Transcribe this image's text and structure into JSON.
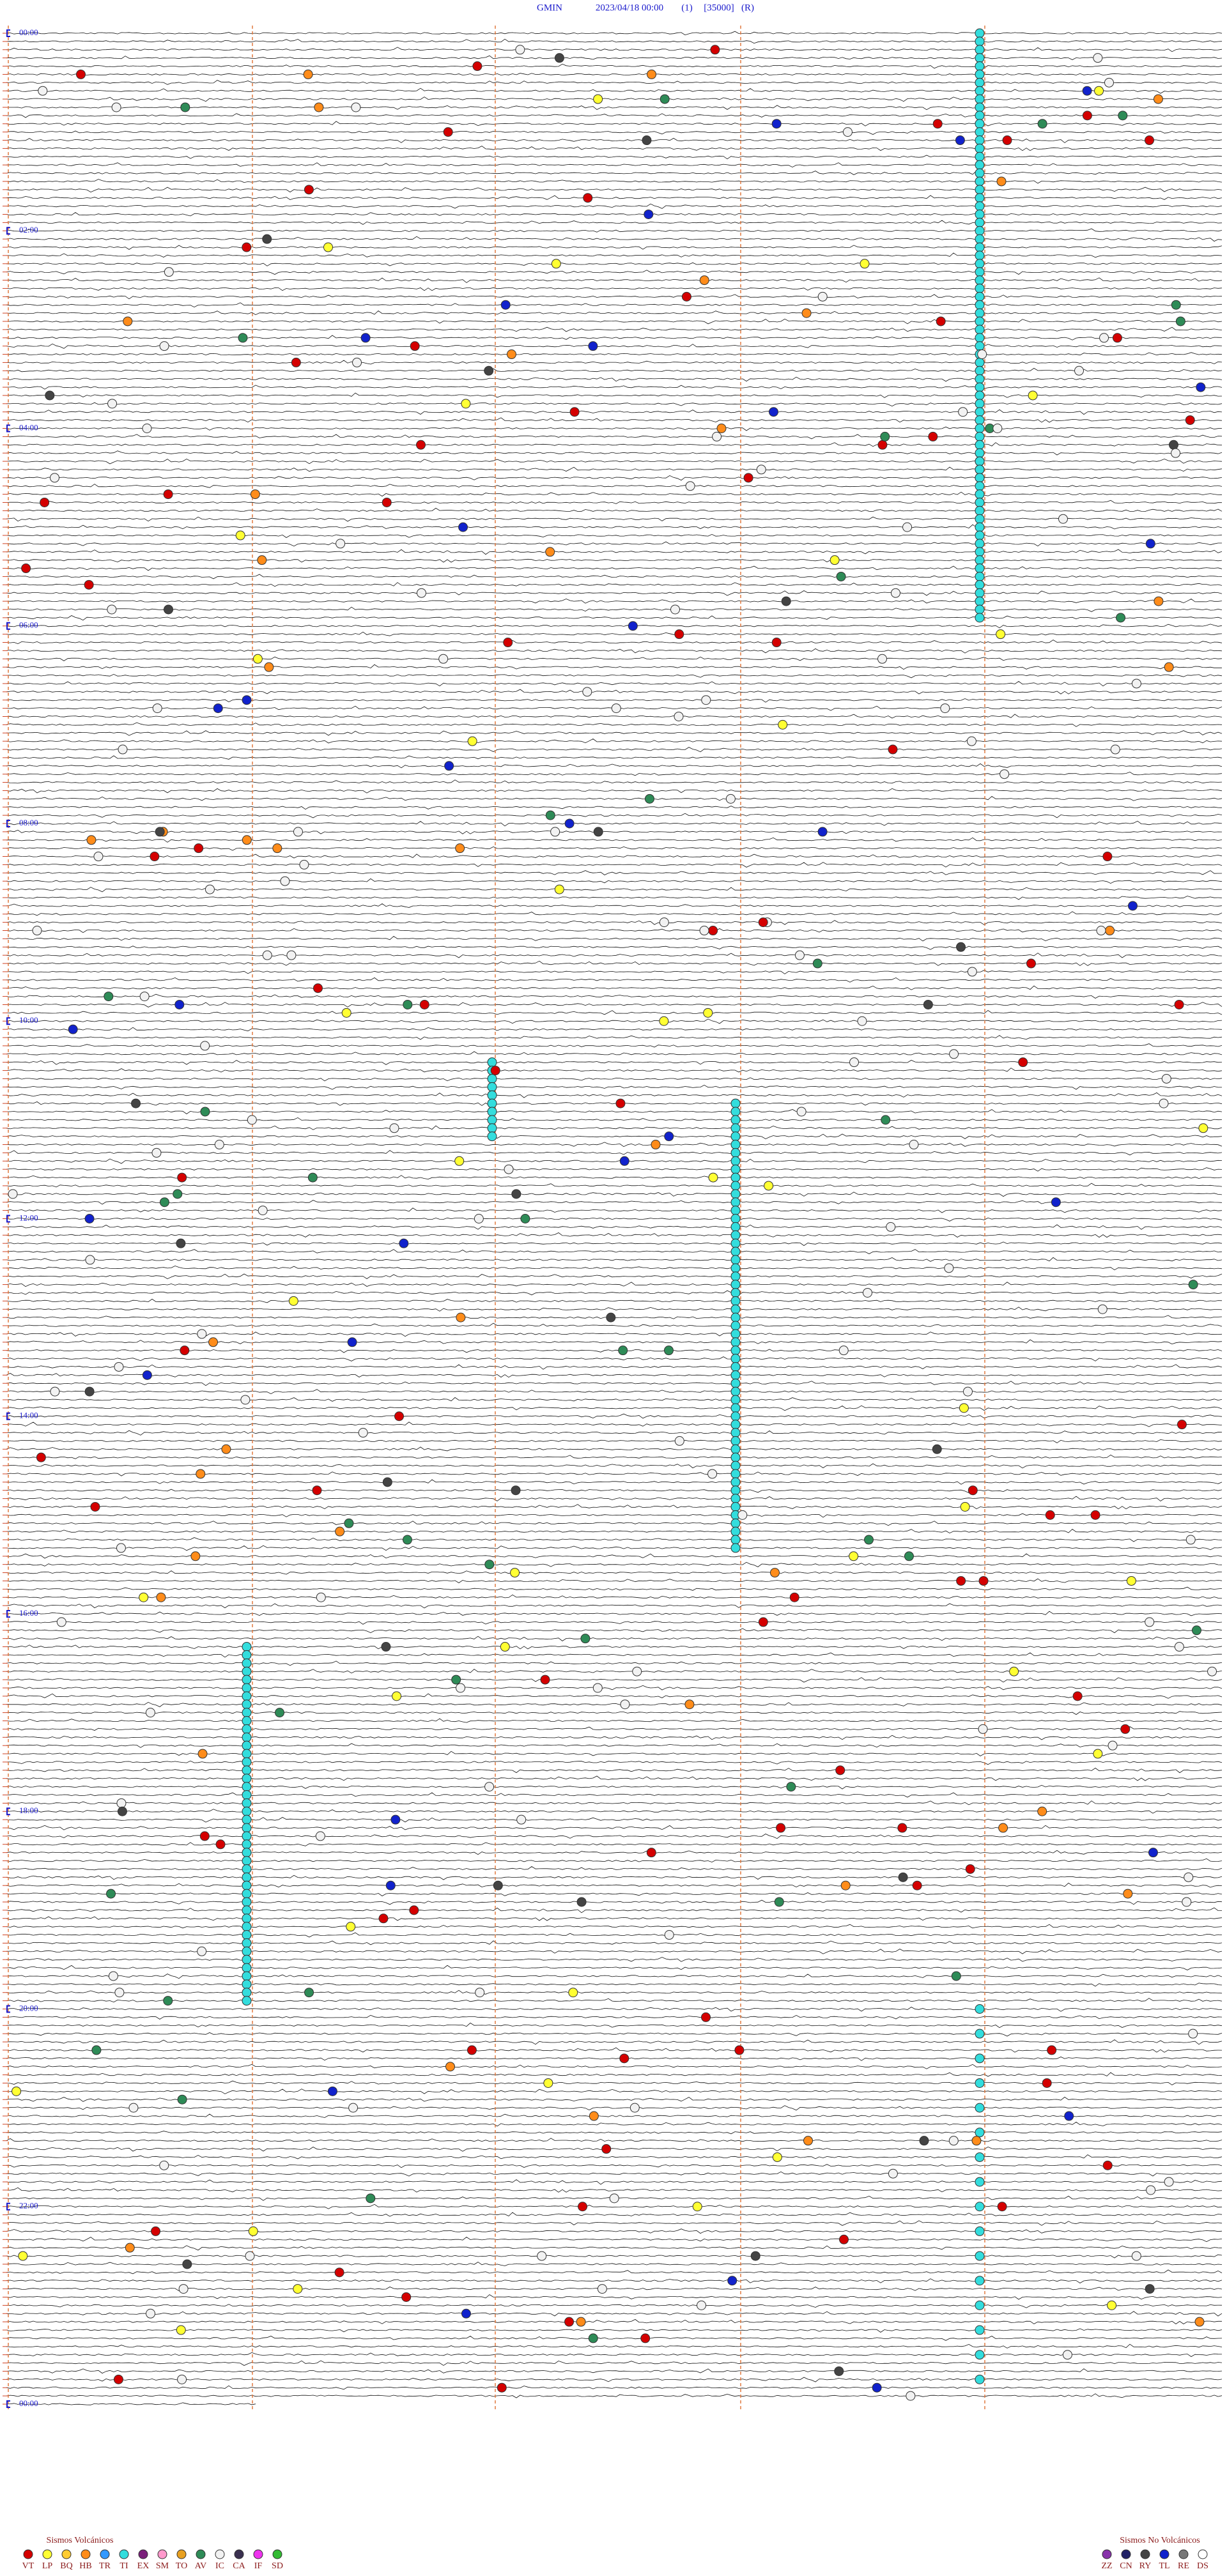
{
  "header": {
    "station": "GMIN",
    "datetime": "2023/04/18 00:00",
    "channel": "(1)",
    "scale": "[35000]",
    "mode": "(R)"
  },
  "hour_labels": [
    "00:00",
    "02:00",
    "04:00",
    "06:00",
    "08:00",
    "10:00",
    "12:00",
    "14:00",
    "16:00",
    "18:00",
    "20:00",
    "22:00",
    "00:00"
  ],
  "legend_volcanic": {
    "title": "Sismos Volcánicos",
    "items": [
      {
        "code": "VT",
        "color": "#d40000"
      },
      {
        "code": "LP",
        "color": "#ffff33"
      },
      {
        "code": "BQ",
        "color": "#ffcc33"
      },
      {
        "code": "HB",
        "color": "#ff8c1a"
      },
      {
        "code": "TR",
        "color": "#3399ff"
      },
      {
        "code": "TI",
        "color": "#33dddd"
      },
      {
        "code": "EX",
        "color": "#7a1f7a"
      },
      {
        "code": "SM",
        "color": "#ff99cc"
      },
      {
        "code": "TO",
        "color": "#e8a020"
      },
      {
        "code": "AV",
        "color": "#2e8b57"
      },
      {
        "code": "IC",
        "color": "#f2f2f2"
      },
      {
        "code": "CA",
        "color": "#3a3050"
      },
      {
        "code": "IF",
        "color": "#ee33ee"
      },
      {
        "code": "SD",
        "color": "#33bb33"
      }
    ]
  },
  "legend_non_volcanic": {
    "title": "Sismos No Volcánicos",
    "items": [
      {
        "code": "ZZ",
        "color": "#8833aa"
      },
      {
        "code": "CN",
        "color": "#222266"
      },
      {
        "code": "RY",
        "color": "#444444"
      },
      {
        "code": "TL",
        "color": "#1122cc"
      },
      {
        "code": "RE",
        "color": "#777777"
      },
      {
        "code": "DS",
        "color": "#ffffff"
      }
    ]
  }
}
